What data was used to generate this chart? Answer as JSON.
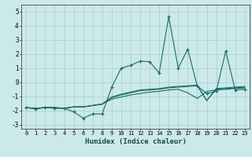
{
  "xlabel": "Humidex (Indice chaleur)",
  "background_color": "#cce9e9",
  "grid_color": "#aacccc",
  "line_color": "#1a6b6b",
  "xlim": [
    -0.5,
    23.5
  ],
  "ylim": [
    -3.3,
    5.5
  ],
  "xticks": [
    0,
    1,
    2,
    3,
    4,
    5,
    6,
    7,
    8,
    9,
    10,
    11,
    12,
    13,
    14,
    15,
    16,
    17,
    18,
    19,
    20,
    21,
    22,
    23
  ],
  "yticks": [
    -3,
    -2,
    -1,
    0,
    1,
    2,
    3,
    4,
    5
  ],
  "series1": [
    -1.8,
    -1.9,
    -1.8,
    -1.85,
    -1.85,
    -2.1,
    -2.55,
    -2.25,
    -2.25,
    -0.35,
    1.0,
    1.2,
    1.5,
    1.45,
    0.65,
    4.65,
    1.0,
    2.35,
    -0.25,
    -0.8,
    -0.65,
    2.2,
    -0.55,
    -0.5
  ],
  "series2": [
    -1.8,
    -1.85,
    -1.8,
    -1.8,
    -1.85,
    -1.75,
    -1.75,
    -1.65,
    -1.55,
    -1.2,
    -1.05,
    -0.9,
    -0.8,
    -0.7,
    -0.65,
    -0.55,
    -0.5,
    -0.75,
    -1.15,
    -0.65,
    -0.55,
    -0.5,
    -0.45,
    -0.4
  ],
  "series3": [
    -1.8,
    -1.85,
    -1.8,
    -1.8,
    -1.85,
    -1.75,
    -1.75,
    -1.65,
    -1.55,
    -1.1,
    -0.9,
    -0.75,
    -0.6,
    -0.55,
    -0.5,
    -0.4,
    -0.35,
    -0.3,
    -0.25,
    -1.3,
    -0.5,
    -0.45,
    -0.4,
    -0.35
  ],
  "series4": [
    -1.8,
    -1.85,
    -1.8,
    -1.8,
    -1.85,
    -1.75,
    -1.75,
    -1.65,
    -1.55,
    -1.05,
    -0.85,
    -0.7,
    -0.55,
    -0.5,
    -0.45,
    -0.35,
    -0.3,
    -0.25,
    -0.2,
    -1.3,
    -0.45,
    -0.4,
    -0.35,
    -0.3
  ]
}
